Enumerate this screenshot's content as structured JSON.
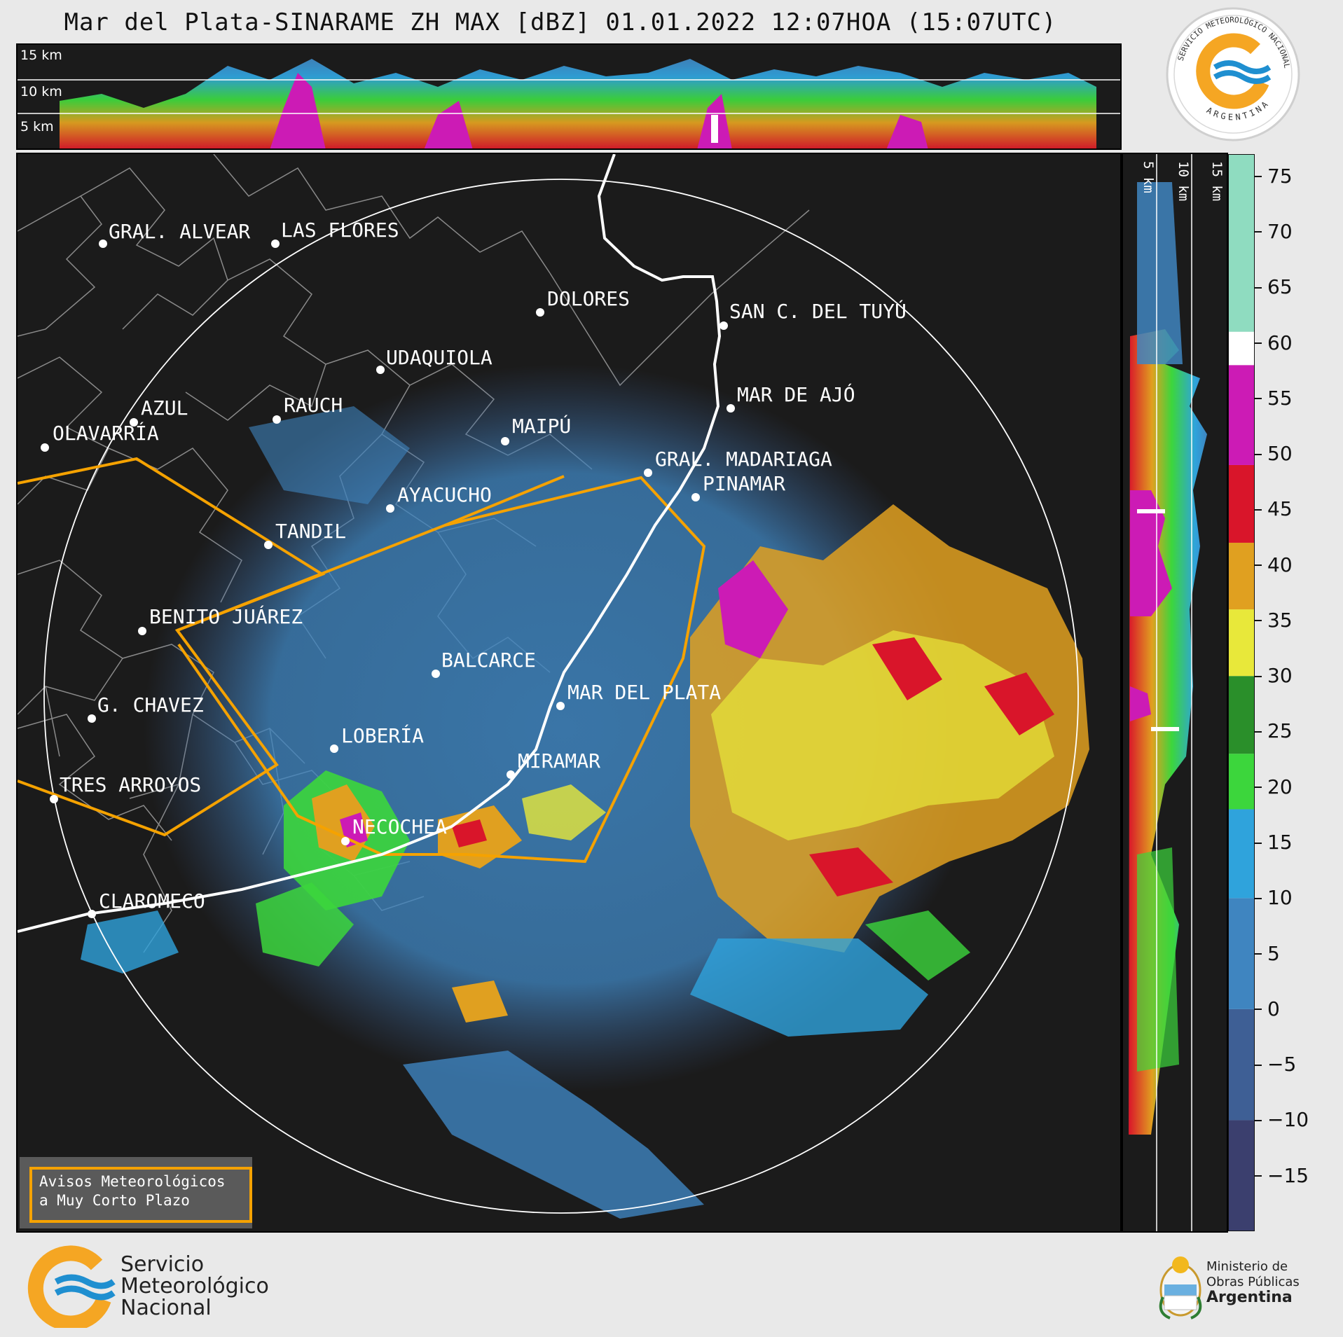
{
  "title": "Mar del Plata-SINARAME ZH MAX [dBZ] 01.01.2022 12:07HOA (15:07UTC)",
  "top_altitude_labels": [
    "15 km",
    "10 km",
    "5 km"
  ],
  "side_altitude_labels": [
    "5 km",
    "10 km",
    "15 km"
  ],
  "colorbar": {
    "ticks": [
      "75",
      "70",
      "65",
      "60",
      "55",
      "50",
      "45",
      "40",
      "35",
      "30",
      "25",
      "20",
      "15",
      "10",
      "5",
      "0",
      "−5",
      "−10",
      "−15"
    ],
    "range": [
      -20,
      77
    ],
    "bands": [
      {
        "from": -20,
        "to": -10,
        "color": "#3b3f6e"
      },
      {
        "from": -10,
        "to": 0,
        "color": "#3e5f95"
      },
      {
        "from": 0,
        "to": 10,
        "color": "#3f85c0"
      },
      {
        "from": 10,
        "to": 18,
        "color": "#2fa3dc"
      },
      {
        "from": 18,
        "to": 23,
        "color": "#3cd63c"
      },
      {
        "from": 23,
        "to": 30,
        "color": "#2a8f2a"
      },
      {
        "from": 30,
        "to": 36,
        "color": "#e8e83a"
      },
      {
        "from": 36,
        "to": 42,
        "color": "#e0a020"
      },
      {
        "from": 42,
        "to": 49,
        "color": "#d9152a"
      },
      {
        "from": 49,
        "to": 58,
        "color": "#cc1bb5"
      },
      {
        "from": 58,
        "to": 61,
        "color": "#ffffff"
      },
      {
        "from": 61,
        "to": 77,
        "color": "#8fdcc0"
      }
    ]
  },
  "cities": [
    {
      "name": "GRAL. ALVEAR"
    },
    {
      "name": "LAS FLORES"
    },
    {
      "name": "DOLORES"
    },
    {
      "name": "SAN C. DEL TUYÚ"
    },
    {
      "name": "UDAQUIOLA"
    },
    {
      "name": "MAR DE AJÓ"
    },
    {
      "name": "AZUL"
    },
    {
      "name": "RAUCH"
    },
    {
      "name": "OLAVARRÍA"
    },
    {
      "name": "MAIPÚ"
    },
    {
      "name": "GRAL. MADARIAGA"
    },
    {
      "name": "PINAMAR"
    },
    {
      "name": "AYACUCHO"
    },
    {
      "name": "TANDIL"
    },
    {
      "name": "BENITO JUÁREZ"
    },
    {
      "name": "BALCARCE"
    },
    {
      "name": "MAR DEL PLATA"
    },
    {
      "name": "G. CHAVEZ"
    },
    {
      "name": "LOBERÍA"
    },
    {
      "name": "MIRAMAR"
    },
    {
      "name": "TRES ARROYOS"
    },
    {
      "name": "NECOCHEA"
    },
    {
      "name": "CLAROMECO"
    }
  ],
  "legend": {
    "line1": "Avisos Meteorológicos",
    "line2": "a Muy Corto Plazo",
    "color": "#f5a200"
  },
  "logos": {
    "top_ring_text": "SERVICIO METEOROLÓGICO NACIONAL",
    "top_bottom_text": "ARGENTINA",
    "smn_lines": [
      "Servicio",
      "Meteorológico",
      "Nacional"
    ],
    "ministry_lines": [
      "Ministerio de",
      "Obras Públicas",
      "Argentina"
    ]
  },
  "colors": {
    "background": "#e9e9e9",
    "panel": "#1b1b1b",
    "warning": "#f5a200",
    "brand_orange": "#f5a623",
    "brand_blue": "#1f8fd0"
  }
}
